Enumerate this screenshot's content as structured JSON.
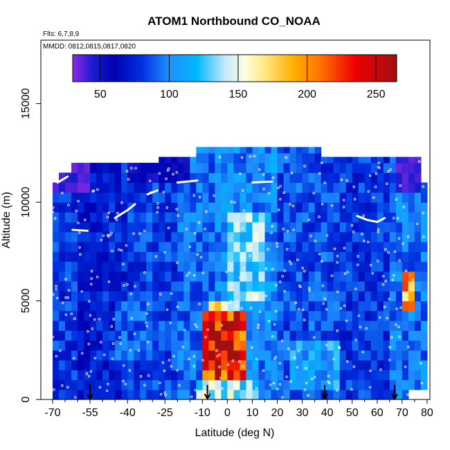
{
  "chart_data": {
    "type": "heatmap",
    "title": "ATOM1 Northbound CO_NOAA",
    "flights_label": "Flts: 6,7,8,9",
    "dates_label": "MMDD: 0812,0815,0817,0820",
    "xlabel": "Latitude (deg N)",
    "ylabel": "Altitude (m)",
    "xlim": [
      -70,
      80
    ],
    "ylim": [
      0,
      17500
    ],
    "x_ticks": [
      -70,
      -55,
      -40,
      -25,
      -10,
      0,
      10,
      20,
      30,
      40,
      50,
      60,
      70,
      80
    ],
    "x_tick_labels": [
      "-70",
      "-55",
      "-40",
      "-25",
      "-10",
      "0",
      "10",
      "20",
      "30",
      "40",
      "50",
      "60",
      "70",
      "80"
    ],
    "y_ticks": [
      0,
      5000,
      10000,
      15000
    ],
    "y_tick_labels": [
      "0",
      "5000",
      "10000",
      "15000"
    ],
    "colorbar": {
      "min": 30,
      "max": 265,
      "ticks": [
        50,
        100,
        150,
        200,
        250
      ],
      "tick_labels": [
        "50",
        "100",
        "150",
        "200",
        "250"
      ],
      "stops": [
        {
          "v": 30,
          "color": "#8a2be2"
        },
        {
          "v": 45,
          "color": "#1a1ad0"
        },
        {
          "v": 60,
          "color": "#0000b0"
        },
        {
          "v": 80,
          "color": "#0030e0"
        },
        {
          "v": 100,
          "color": "#1e90ff"
        },
        {
          "v": 120,
          "color": "#00b8ff"
        },
        {
          "v": 140,
          "color": "#bfe8ff"
        },
        {
          "v": 155,
          "color": "#ffffe0"
        },
        {
          "v": 170,
          "color": "#ffe680"
        },
        {
          "v": 190,
          "color": "#ffb000"
        },
        {
          "v": 210,
          "color": "#ff7000"
        },
        {
          "v": 235,
          "color": "#ee0000"
        },
        {
          "v": 265,
          "color": "#a01010"
        }
      ]
    },
    "grid": false,
    "arrows_x": [
      -55,
      -8,
      39,
      67
    ],
    "field": {
      "lat_step": 2.5,
      "alt_step": 500,
      "background": [
        {
          "lat_min": -60,
          "lat_max": -52,
          "value": 70
        },
        {
          "lat_min": -52,
          "lat_max": -40,
          "value": 75
        },
        {
          "lat_min": -40,
          "lat_max": -20,
          "value": 82
        },
        {
          "lat_min": -20,
          "lat_max": -5,
          "value": 92
        },
        {
          "lat_min": -5,
          "lat_max": 20,
          "value": 100
        },
        {
          "lat_min": 20,
          "lat_max": 45,
          "value": 85
        },
        {
          "lat_min": 45,
          "lat_max": 65,
          "value": 80
        },
        {
          "lat_min": 65,
          "lat_max": 80,
          "value": 95
        }
      ],
      "top_of_data": [
        {
          "lat_min": -70,
          "lat_max": -67,
          "alt": 11000
        },
        {
          "lat_min": -67,
          "lat_max": -62,
          "alt": 11500
        },
        {
          "lat_min": -62,
          "lat_max": -55,
          "alt": 12000
        },
        {
          "lat_min": -55,
          "lat_max": -28,
          "alt": 12000
        },
        {
          "lat_min": -28,
          "lat_max": -12,
          "alt": 12300
        },
        {
          "lat_min": -12,
          "lat_max": 37,
          "alt": 12800
        },
        {
          "lat_min": 37,
          "lat_max": 77,
          "alt": 12300
        },
        {
          "lat_min": 77,
          "lat_max": 80,
          "alt": 11000
        }
      ],
      "bottom_of_data": [
        {
          "lat_min": 72,
          "lat_max": 80,
          "alt": 500
        }
      ],
      "features": [
        {
          "lat_min": -10,
          "lat_max": 8,
          "alt_min": 1000,
          "alt_max": 4500,
          "value": 225
        },
        {
          "lat_min": -8,
          "lat_max": 2,
          "alt_min": 2000,
          "alt_max": 4000,
          "value": 250
        },
        {
          "lat_min": -8,
          "lat_max": 6,
          "alt_min": 4500,
          "alt_max": 5200,
          "value": 160
        },
        {
          "lat_min": -12,
          "lat_max": 12,
          "alt_min": 0,
          "alt_max": 1000,
          "value": 140
        },
        {
          "lat_min": 0,
          "lat_max": 14,
          "alt_min": 5200,
          "alt_max": 9500,
          "value": 130
        },
        {
          "lat_min": 70,
          "lat_max": 76,
          "alt_min": 4500,
          "alt_max": 6500,
          "value": 190
        },
        {
          "lat_min": -70,
          "lat_max": -55,
          "alt_min": 10500,
          "alt_max": 12200,
          "value": 40
        },
        {
          "lat_min": 68,
          "lat_max": 78,
          "alt_min": 10500,
          "alt_max": 12300,
          "value": 40
        },
        {
          "lat_min": -40,
          "lat_max": -15,
          "alt_min": 11000,
          "alt_max": 12300,
          "value": 55
        },
        {
          "lat_min": 25,
          "lat_max": 45,
          "alt_min": 500,
          "alt_max": 3000,
          "value": 110
        },
        {
          "lat_min": -45,
          "lat_max": -30,
          "alt_min": 2000,
          "alt_max": 5000,
          "value": 88
        }
      ]
    },
    "flight_tracks": [
      {
        "points": [
          [
            -45,
            9200
          ],
          [
            -40,
            9600
          ],
          [
            -37,
            9900
          ]
        ]
      },
      {
        "points": [
          [
            52,
            9300
          ],
          [
            56,
            9100
          ],
          [
            60,
            9000
          ],
          [
            63,
            9200
          ]
        ]
      },
      {
        "points": [
          [
            -68,
            11000
          ],
          [
            -64,
            11300
          ]
        ]
      },
      {
        "points": [
          [
            -32,
            10400
          ],
          [
            -28,
            10600
          ]
        ]
      },
      {
        "points": [
          [
            -20,
            11000
          ],
          [
            -12,
            11100
          ]
        ]
      },
      {
        "points": [
          [
            10,
            11000
          ],
          [
            18,
            11050
          ]
        ]
      },
      {
        "points": [
          [
            -62,
            8600
          ],
          [
            -56,
            8550
          ]
        ]
      }
    ],
    "sample_points": {
      "count": 420,
      "seed": 7,
      "lat_range": [
        -70,
        79
      ],
      "alt_range": [
        100,
        12500
      ]
    }
  }
}
